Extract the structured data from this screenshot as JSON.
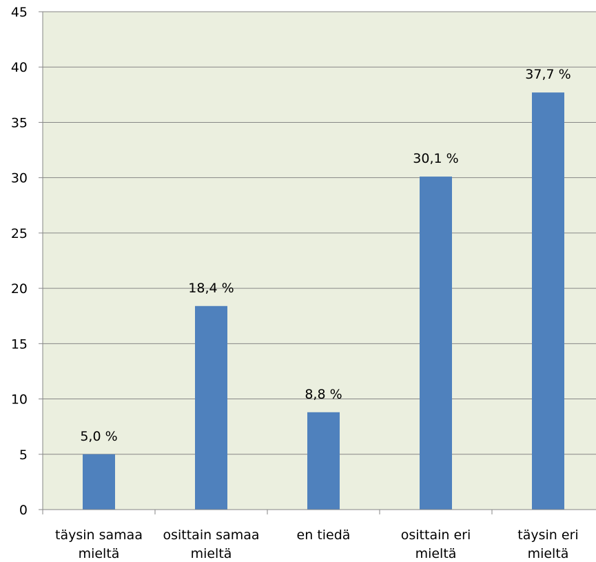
{
  "chart_data": {
    "type": "bar",
    "title": "",
    "xlabel": "",
    "ylabel": "",
    "categories": [
      [
        "täysin samaa",
        "mieltä"
      ],
      [
        "osittain samaa",
        "mieltä"
      ],
      [
        "en tiedä"
      ],
      [
        "osittain eri",
        "mieltä"
      ],
      [
        "täysin eri",
        "mieltä"
      ]
    ],
    "values": [
      5.0,
      18.4,
      8.8,
      30.1,
      37.7
    ],
    "data_labels": [
      "5,0 %",
      "18,4 %",
      "8,8 %",
      "30,1 %",
      "37,7 %"
    ],
    "ylim": [
      0,
      45
    ],
    "yticks": [
      0,
      5,
      10,
      15,
      20,
      25,
      30,
      35,
      40,
      45
    ],
    "grid": true,
    "legend": "none"
  },
  "colors": {
    "plot_background": "#ebefdf",
    "bar": "#4f81bd",
    "gridline": "#868686",
    "axis": "#868686"
  }
}
